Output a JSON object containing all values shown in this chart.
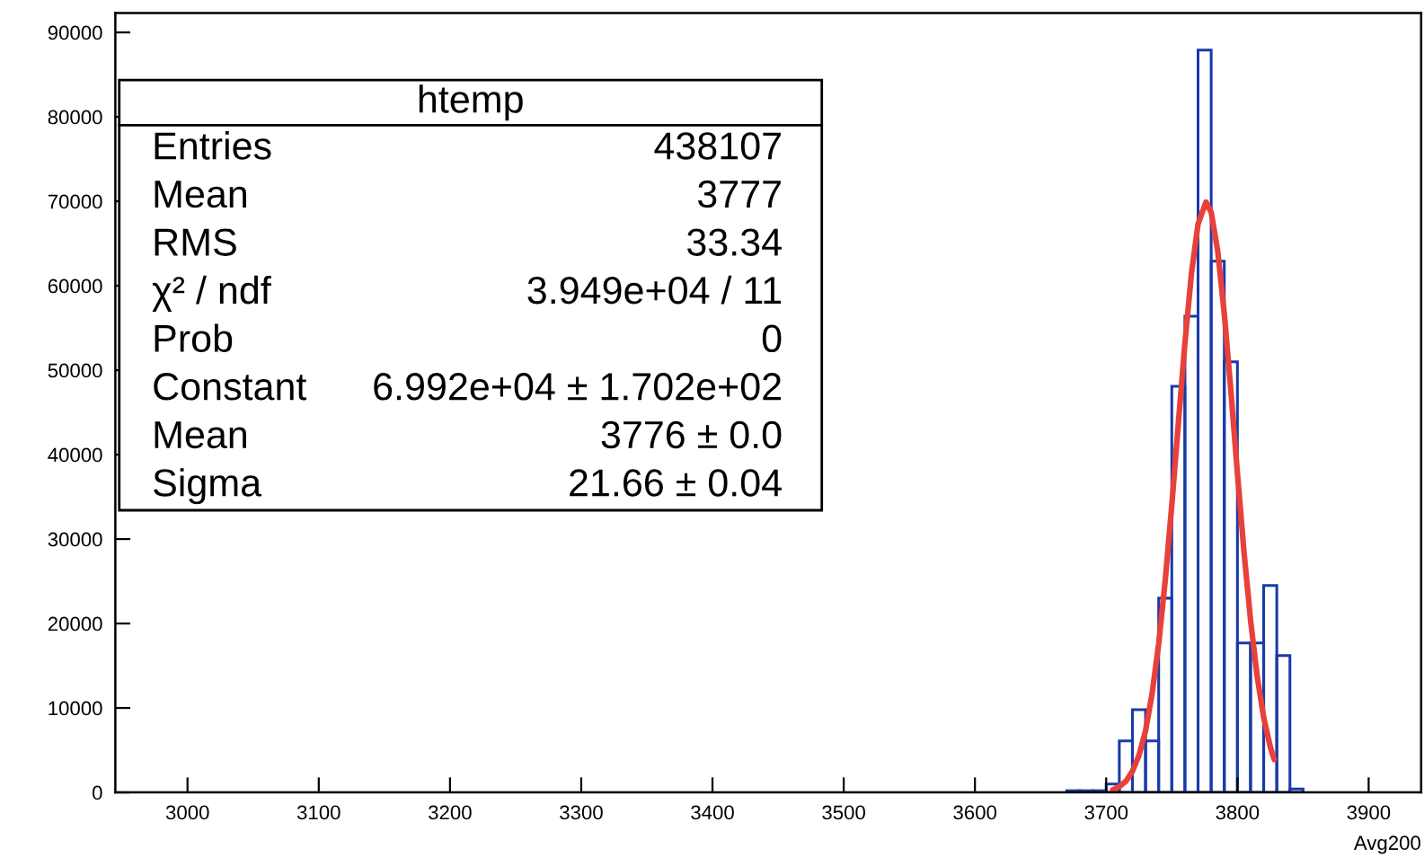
{
  "chart_data": {
    "type": "histogram",
    "xlabel": "Avg200",
    "xlim": [
      2945,
      3940
    ],
    "ylim": [
      0,
      92300
    ],
    "xticks": [
      3000,
      3100,
      3200,
      3300,
      3400,
      3500,
      3600,
      3700,
      3800,
      3900
    ],
    "yticks": [
      0,
      10000,
      20000,
      30000,
      40000,
      50000,
      60000,
      70000,
      80000,
      90000
    ],
    "grid": false,
    "legend": false,
    "color": "#1a3aa8",
    "bins": [
      3670,
      3680,
      3690,
      3700,
      3710,
      3720,
      3730,
      3740,
      3750,
      3760,
      3770,
      3780,
      3790,
      3800,
      3810,
      3820,
      3830,
      3840,
      3850
    ],
    "values": [
      200,
      200,
      200,
      1000,
      6100,
      9800,
      6100,
      23000,
      48100,
      56400,
      87900,
      62900,
      51000,
      17700,
      17700,
      24500,
      16200,
      400
    ],
    "series": [
      {
        "type": "line",
        "color": "#e8403a",
        "x": [
          3705,
          3710,
          3715,
          3720,
          3725,
          3730,
          3735,
          3740,
          3745,
          3750,
          3755,
          3760,
          3765,
          3770,
          3776,
          3780,
          3785,
          3790,
          3795,
          3800,
          3805,
          3810,
          3815,
          3820,
          3825,
          3828
        ],
        "values": [
          300,
          700,
          1300,
          2500,
          4400,
          7300,
          11700,
          17600,
          25100,
          34000,
          43700,
          53200,
          61500,
          67300,
          69900,
          68700,
          64100,
          56700,
          47600,
          37800,
          28500,
          20400,
          13800,
          8900,
          5400,
          3900
        ]
      }
    ],
    "annotations": [
      "htemp",
      "Entries",
      "438107",
      "Mean",
      "3777",
      "RMS",
      "33.34",
      "χ² / ndf",
      "3.949e+04 / 11",
      "Prob",
      "0",
      "Constant",
      "6.992e+04 ± 1.702e+02",
      "Mean",
      "3776 ± 0.0",
      "Sigma",
      "21.66 ± 0.04"
    ]
  }
}
